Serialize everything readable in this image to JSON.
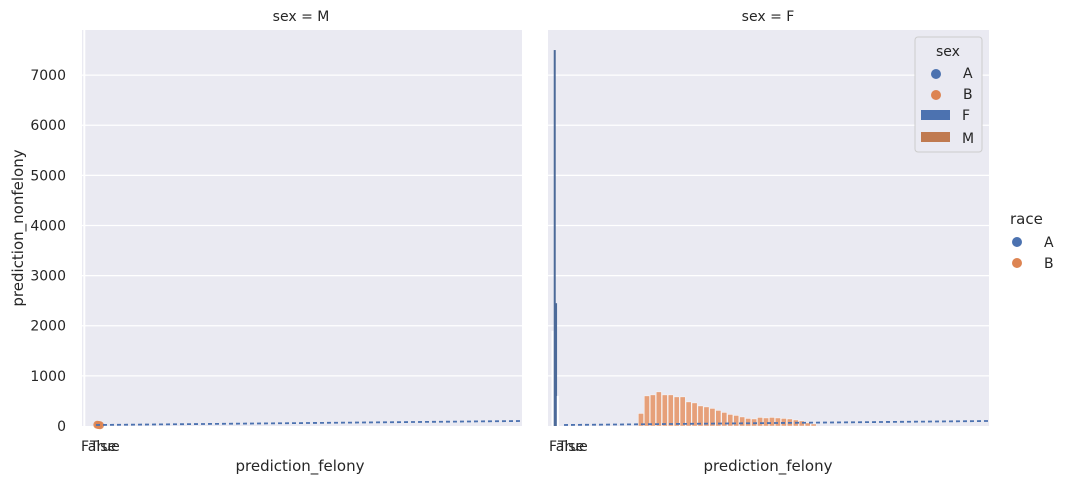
{
  "chart_data": {
    "type": "bar",
    "facet_variable": "sex",
    "panels": [
      {
        "title": "sex = M",
        "xlabel": "prediction_felony",
        "ylabel": "prediction_nonfelony",
        "x_tick_labels": [
          "False",
          "True"
        ],
        "ylim": [
          0,
          7900
        ],
        "y_ticks": [
          0,
          1000,
          2000,
          3000,
          4000,
          5000,
          6000,
          7000
        ],
        "spikes": [
          {
            "x": 0.0,
            "value": 7900,
            "color": "#ffffff"
          },
          {
            "x": 0.075,
            "value": 7900,
            "color": "#ffffff"
          }
        ],
        "points": [
          {
            "x": 0.03,
            "value": 25,
            "race": "B"
          },
          {
            "x": 0.06,
            "value": 20,
            "race": "B"
          },
          {
            "x": 0.09,
            "value": 15,
            "race": "B"
          }
        ],
        "histogram": {
          "x_start": 0,
          "bin_width": 0.25,
          "values": []
        },
        "trend_line": {
          "x": [
            0,
            10
          ],
          "y": [
            0,
            100
          ]
        }
      },
      {
        "title": "sex = F",
        "xlabel": "prediction_felony",
        "x_tick_labels": [
          "False",
          "True"
        ],
        "ylim": [
          0,
          7900
        ],
        "spikes": [
          {
            "x": 0.08,
            "value": 1900,
            "color": "#ffffff"
          },
          {
            "x": 0.13,
            "value": 7500,
            "color": "#4c6a99"
          },
          {
            "x": 0.16,
            "value": 2450,
            "color": "#4c6a99"
          },
          {
            "x": 0.2,
            "value": 600,
            "color": "#ffffff"
          }
        ],
        "points": [],
        "histogram": {
          "x_start": 2.05,
          "bin_width": 0.135,
          "values": [
            250,
            600,
            620,
            680,
            620,
            620,
            580,
            580,
            480,
            460,
            400,
            380,
            350,
            310,
            270,
            230,
            210,
            180,
            150,
            140,
            170,
            160,
            170,
            160,
            150,
            140,
            120,
            100,
            60,
            40
          ]
        },
        "trend_line": {
          "x": [
            0,
            10
          ],
          "y": [
            0,
            100
          ]
        }
      }
    ],
    "legend_inner": {
      "title": "sex",
      "position": "top-right of right panel",
      "entries": [
        {
          "label": "A",
          "marker": "point",
          "color": "#4c72b0"
        },
        {
          "label": "B",
          "marker": "point",
          "color": "#dd8452"
        },
        {
          "label": "F",
          "marker": "bar",
          "color": "#4c72b0"
        },
        {
          "label": "M",
          "marker": "bar",
          "color": "#c07a50"
        }
      ]
    },
    "legend_outer": {
      "title": "race",
      "position": "right",
      "entries": [
        {
          "label": "A",
          "color": "#4c72b0"
        },
        {
          "label": "B",
          "color": "#dd8452"
        }
      ]
    },
    "grid": true,
    "colors": {
      "panel_background": "#eaeaf2",
      "grid": "#ffffff",
      "blue": "#4c72b0",
      "orange": "#dd8452",
      "bar_orange": "#e6a07a"
    }
  }
}
